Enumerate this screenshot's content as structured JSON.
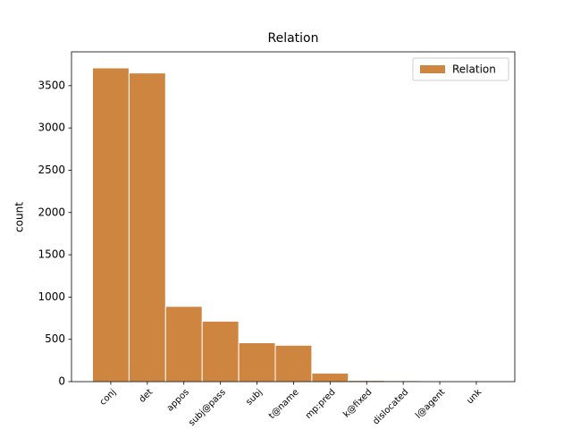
{
  "chart_data": {
    "type": "bar",
    "title": "Relation",
    "y_label": "count",
    "categories": [
      "conj",
      "det",
      "appos",
      "subj@pass",
      "subj",
      "t@name",
      "mp:pred",
      "k@fixed",
      "dislocated",
      "l@agent",
      "unk"
    ],
    "series": [
      {
        "name": "Relation",
        "color": "#cd853f",
        "values": [
          3710,
          3650,
          890,
          715,
          460,
          430,
          100,
          15,
          12,
          3,
          2
        ]
      }
    ],
    "ylim": [
      0,
      3900
    ],
    "yticks": [
      0,
      500,
      1000,
      1500,
      2000,
      2500,
      3000,
      3500
    ],
    "legend": "upper right"
  }
}
